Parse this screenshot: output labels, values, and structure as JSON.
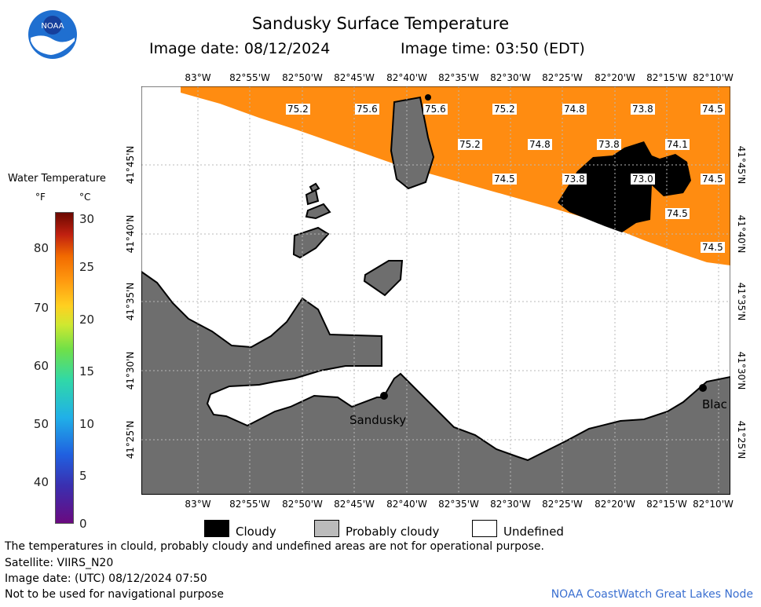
{
  "header": {
    "title": "Sandusky Surface Temperature",
    "image_date": "Image date: 08/12/2024",
    "image_time": "Image time: 03:50 (EDT)"
  },
  "logo": {
    "text": "NOAA"
  },
  "color_scale": {
    "title": "Water Temperature",
    "unit_f": "°F",
    "unit_c": "°C",
    "ticks_f": [
      "80",
      "70",
      "60",
      "50",
      "40"
    ],
    "ticks_c": [
      "30",
      "25",
      "20",
      "15",
      "10",
      "5",
      "0"
    ]
  },
  "map": {
    "longitudes": [
      "83°W",
      "82°55'W",
      "82°50'W",
      "82°45'W",
      "82°40'W",
      "82°35'W",
      "82°30'W",
      "82°25'W",
      "82°20'W",
      "82°15'W",
      "82°10'W"
    ],
    "latitudes": [
      "41°45'N",
      "41°40'N",
      "41°35'N",
      "41°30'N",
      "41°25'N"
    ],
    "temperatures": [
      "75.2",
      "75.6",
      "75.6",
      "75.2",
      "74.8",
      "73.8",
      "74.5",
      "75.2",
      "74.8",
      "73.8",
      "74.1",
      "74.5",
      "73.8",
      "73.0",
      "74.5",
      "74.5",
      "74.5"
    ],
    "cities": [
      "Sandusky",
      "Blac"
    ],
    "colors": {
      "warm_water": "#ff8c11",
      "land": "#6e6e6e",
      "cloud": "#000000",
      "undefined": "#ffffff"
    }
  },
  "legend": {
    "cloudy": "Cloudy",
    "probably_cloudy": "Probably cloudy",
    "undefined": "Undefined"
  },
  "footer": {
    "disclaimer": "The temperatures in clould, probably cloudy and undefined areas are not for operational purpose.",
    "satellite": "Satellite: VIIRS_N20",
    "utc_date": "Image date: (UTC) 08/12/2024  07:50",
    "navigation": "Not to be used for navigational purpose",
    "credit": "NOAA CoastWatch Great Lakes Node"
  }
}
